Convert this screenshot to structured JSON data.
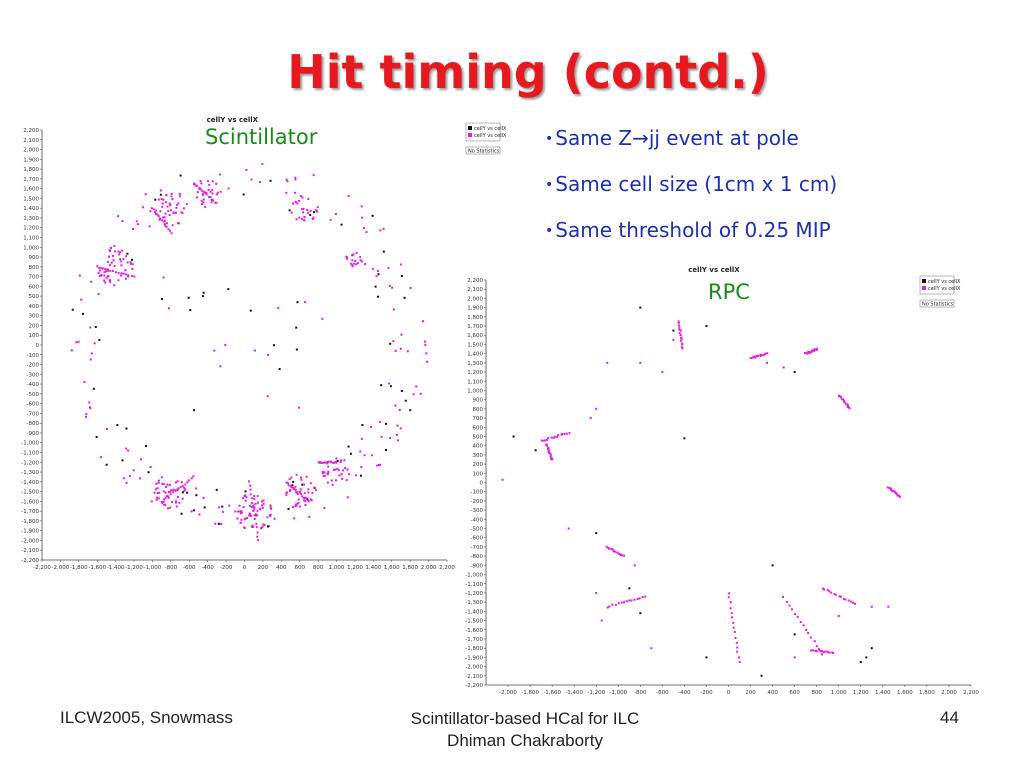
{
  "slide": {
    "title": "Hit timing (contd.)",
    "bullets": [
      "Same Z→jj event at pole",
      "Same cell size (1cm x 1 cm)",
      "Same threshold of 0.25 MIP"
    ],
    "footer_left": "ILCW2005, Snowmass",
    "footer_center_line1": "Scintillator-based HCal for ILC",
    "footer_center_line2": "Dhiman Chakraborty",
    "page_number": "44"
  },
  "colors": {
    "title": "#e8191e",
    "bullet": "#1f2fb0",
    "label": "#1a8a1a",
    "hit_magenta": "#e020e0",
    "hit_black": "#111111"
  },
  "chart_data": [
    {
      "type": "scatter",
      "name": "scintillator",
      "panel_label": "Scintillator",
      "title": "cellY vs cellX",
      "xlim": [
        -2200,
        2200
      ],
      "ylim": [
        -2200,
        2200
      ],
      "x_ticks": [
        -2200,
        -2000,
        -1800,
        -1600,
        -1400,
        -1200,
        -1000,
        -800,
        -600,
        -400,
        -200,
        0,
        200,
        400,
        600,
        800,
        1000,
        1200,
        1400,
        1600,
        1800,
        2000,
        2200
      ],
      "y_ticks": [
        -2200,
        -2100,
        -2000,
        -1900,
        -1800,
        -1700,
        -1600,
        -1500,
        -1400,
        -1300,
        -1200,
        -1100,
        -1000,
        -900,
        -800,
        -700,
        -600,
        -500,
        -400,
        -300,
        -200,
        -100,
        0,
        100,
        200,
        300,
        400,
        500,
        600,
        700,
        800,
        900,
        1000,
        1100,
        1200,
        1300,
        1400,
        1500,
        1600,
        1700,
        1800,
        1900,
        2000,
        2100,
        2200
      ],
      "legend": [
        "cellY vs cellX",
        "cellY vs cellX"
      ],
      "stats_label": "No Statistics",
      "clusters": [
        {
          "x": -1400,
          "y": 800,
          "r": 200,
          "n": 45,
          "color": "magenta"
        },
        {
          "x": -800,
          "y": 1400,
          "r": 180,
          "n": 40,
          "color": "magenta"
        },
        {
          "x": -400,
          "y": 1550,
          "r": 150,
          "n": 25,
          "color": "magenta"
        },
        {
          "x": 650,
          "y": 1400,
          "r": 150,
          "n": 25,
          "color": "magenta"
        },
        {
          "x": 1200,
          "y": 850,
          "r": 120,
          "n": 20,
          "color": "magenta"
        },
        {
          "x": -800,
          "y": -1500,
          "r": 180,
          "n": 40,
          "color": "magenta"
        },
        {
          "x": 100,
          "y": -1700,
          "r": 200,
          "n": 55,
          "color": "magenta"
        },
        {
          "x": 600,
          "y": -1500,
          "r": 180,
          "n": 40,
          "color": "magenta"
        },
        {
          "x": 1000,
          "y": -1300,
          "r": 150,
          "n": 30,
          "color": "magenta"
        }
      ],
      "track_segments": [
        {
          "x1": -1600,
          "y1": 800,
          "x2": -1200,
          "y2": 700
        },
        {
          "x1": -1000,
          "y1": 1400,
          "x2": -800,
          "y2": 1150
        },
        {
          "x1": -550,
          "y1": 1650,
          "x2": -300,
          "y2": 1450
        },
        {
          "x1": -900,
          "y1": -1600,
          "x2": -550,
          "y2": -1350
        },
        {
          "x1": 50,
          "y1": -1400,
          "x2": 150,
          "y2": -2000
        },
        {
          "x1": 450,
          "y1": -1400,
          "x2": 700,
          "y2": -1600
        },
        {
          "x1": 1000,
          "y1": -1200,
          "x2": 800,
          "y2": -1200
        }
      ],
      "ring_radius_x": 1900,
      "ring_radius_y": 1800,
      "ring_points": 150,
      "inner_points": 25,
      "black_points": 60
    },
    {
      "type": "scatter",
      "name": "rpc",
      "panel_label": "RPC",
      "title": "cellY vs cellX",
      "xlim": [
        -2200,
        2200
      ],
      "ylim": [
        -2200,
        2200
      ],
      "x_ticks": [
        -2000,
        -1800,
        -1600,
        -1400,
        -1200,
        -1000,
        -800,
        -600,
        -400,
        -200,
        0,
        200,
        400,
        600,
        800,
        1000,
        1200,
        1400,
        1600,
        1800,
        2000,
        2200
      ],
      "y_ticks": [
        -2200,
        -2100,
        -2000,
        -1900,
        -1800,
        -1700,
        -1600,
        -1500,
        -1400,
        -1300,
        -1200,
        -1100,
        -1000,
        -900,
        -800,
        -700,
        -600,
        -500,
        -400,
        -300,
        -200,
        -100,
        0,
        100,
        200,
        300,
        400,
        500,
        600,
        700,
        800,
        900,
        1000,
        1100,
        1200,
        1300,
        1400,
        1500,
        1600,
        1700,
        1800,
        1900,
        2000,
        2100,
        2200
      ],
      "legend": [
        "cellY vs cellX",
        "cellY vs cellX"
      ],
      "stats_label": "No Statistics",
      "track_segments": [
        {
          "x1": -450,
          "y1": 1750,
          "x2": -420,
          "y2": 1450
        },
        {
          "x1": -1700,
          "y1": 450,
          "x2": -1450,
          "y2": 540
        },
        {
          "x1": -1650,
          "y1": 420,
          "x2": -1600,
          "y2": 250
        },
        {
          "x1": -1100,
          "y1": -700,
          "x2": -950,
          "y2": -800
        },
        {
          "x1": -1100,
          "y1": -1350,
          "x2": -750,
          "y2": -1240
        },
        {
          "x1": 0,
          "y1": -1200,
          "x2": 100,
          "y2": -1950
        },
        {
          "x1": 500,
          "y1": -1250,
          "x2": 850,
          "y2": -1860
        },
        {
          "x1": 750,
          "y1": -1820,
          "x2": 950,
          "y2": -1850
        },
        {
          "x1": 850,
          "y1": -1150,
          "x2": 1150,
          "y2": -1320
        },
        {
          "x1": 1450,
          "y1": -50,
          "x2": 1550,
          "y2": -150
        },
        {
          "x1": 1000,
          "y1": 950,
          "x2": 1100,
          "y2": 800
        },
        {
          "x1": 200,
          "y1": 1350,
          "x2": 350,
          "y2": 1400
        },
        {
          "x1": 700,
          "y1": 1400,
          "x2": 800,
          "y2": 1450
        }
      ],
      "scattered_magenta": [
        [
          -1250,
          700
        ],
        [
          -1200,
          800
        ],
        [
          -800,
          1300
        ],
        [
          -600,
          1200
        ],
        [
          500,
          1250
        ],
        [
          -2050,
          30
        ],
        [
          -1150,
          -1500
        ],
        [
          -700,
          -1800
        ],
        [
          1000,
          -1450
        ],
        [
          1300,
          -1350
        ],
        [
          600,
          -1900
        ],
        [
          -1450,
          -500
        ],
        [
          -1100,
          1300
        ],
        [
          -850,
          -900
        ],
        [
          -1200,
          -1200
        ],
        [
          1450,
          -1350
        ],
        [
          -500,
          1550
        ],
        [
          350,
          1300
        ]
      ],
      "black_points": [
        [
          -800,
          1900
        ],
        [
          -200,
          1700
        ],
        [
          -500,
          1650
        ],
        [
          600,
          1200
        ],
        [
          -1950,
          500
        ],
        [
          -400,
          480
        ],
        [
          -1750,
          350
        ],
        [
          -1200,
          -550
        ],
        [
          400,
          -900
        ],
        [
          -900,
          -1150
        ],
        [
          -800,
          -1420
        ],
        [
          -200,
          -1900
        ],
        [
          600,
          -1650
        ],
        [
          1250,
          -1900
        ],
        [
          1200,
          -1950
        ],
        [
          300,
          -2100
        ],
        [
          1300,
          -1800
        ]
      ]
    }
  ]
}
